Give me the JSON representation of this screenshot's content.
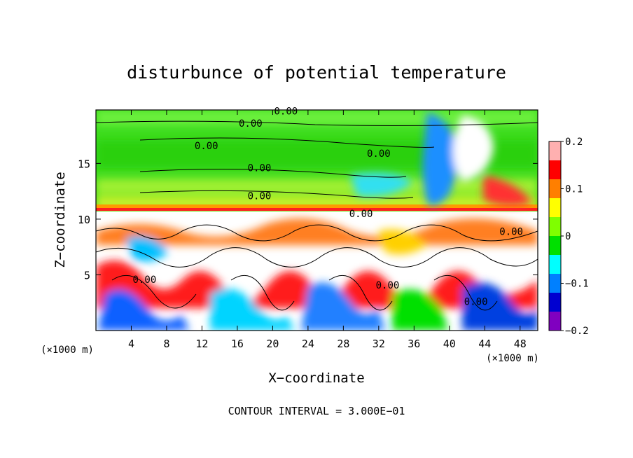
{
  "chart_data": {
    "type": "heatmap",
    "title": "disturbunce of potential temperature",
    "xlabel": "X−coordinate",
    "ylabel": "Z−coordinate",
    "x_unit": "(×1000 m)",
    "z_unit": "(×1000 m)",
    "footer": "CONTOUR INTERVAL = 3.000E−01",
    "xlim": [
      0,
      50
    ],
    "ylim": [
      0,
      19.8
    ],
    "x_ticks": [
      4,
      8,
      12,
      16,
      20,
      24,
      28,
      32,
      36,
      40,
      44,
      48
    ],
    "x_tick_labels": [
      "4",
      "8",
      "12",
      "16",
      "20",
      "24",
      "28",
      "32",
      "36",
      "40",
      "44",
      "48"
    ],
    "y_ticks": [
      5,
      10,
      15
    ],
    "y_tick_labels": [
      "5",
      "10",
      "15"
    ],
    "colorbar": {
      "range": [
        -0.2,
        0.2
      ],
      "ticks": [
        0.2,
        0.1,
        0,
        -0.1,
        -0.2
      ],
      "tick_labels": [
        "0.2",
        "0.1",
        "0",
        "−0.1",
        "−0.2"
      ],
      "colors": [
        "#ffb0b0",
        "#ff0000",
        "#ff7f00",
        "#ffff00",
        "#7fff00",
        "#00e000",
        "#00ffff",
        "#0080ff",
        "#0000d0",
        "#8000c0"
      ]
    },
    "contour_labels": [
      {
        "text": "0.00",
        "x": 21.5,
        "z": 19.7
      },
      {
        "text": "0.00",
        "x": 17.5,
        "z": 18.6
      },
      {
        "text": "0.00",
        "x": 12.5,
        "z": 16.6
      },
      {
        "text": "0.00",
        "x": 32,
        "z": 15.9
      },
      {
        "text": "0.00",
        "x": 18.5,
        "z": 14.6
      },
      {
        "text": "0.00",
        "x": 18.5,
        "z": 12.1
      },
      {
        "text": "0.00",
        "x": 30,
        "z": 10.5
      },
      {
        "text": "0.00",
        "x": 47,
        "z": 8.9
      },
      {
        "text": "0.00",
        "x": 5.5,
        "z": 4.6
      },
      {
        "text": "0.00",
        "x": 33,
        "z": 4.1
      },
      {
        "text": "0.00",
        "x": 43,
        "z": 2.6
      }
    ]
  }
}
